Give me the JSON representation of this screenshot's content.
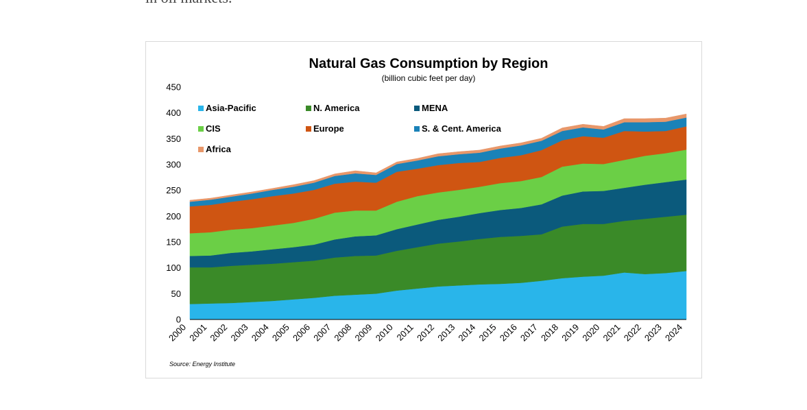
{
  "article": {
    "trailing_text": "in oil markets."
  },
  "chart_data": {
    "type": "area",
    "stacked": true,
    "title": "Natural Gas Consumption by Region",
    "subtitle": "(billion cubic feet per day)",
    "xlabel": "",
    "ylabel": "",
    "ylim": [
      0,
      450
    ],
    "yticks": [
      0,
      50,
      100,
      150,
      200,
      250,
      300,
      350,
      400,
      450
    ],
    "grid": false,
    "legend_placement": "top-left",
    "source": "Source: Energy Institute",
    "categories": [
      "2000",
      "2001",
      "2002",
      "2003",
      "2004",
      "2005",
      "2006",
      "2007",
      "2008",
      "2009",
      "2010",
      "2011",
      "2012",
      "2013",
      "2014",
      "2015",
      "2016",
      "2017",
      "2018",
      "2019",
      "2020",
      "2021",
      "2022",
      "2023",
      "2024"
    ],
    "series": [
      {
        "name": "Asia-Pacific",
        "color": "#29b5ea",
        "values": [
          30,
          31,
          32,
          34,
          36,
          39,
          42,
          46,
          48,
          50,
          56,
          60,
          64,
          66,
          68,
          69,
          71,
          75,
          80,
          83,
          85,
          91,
          88,
          90,
          94
        ]
      },
      {
        "name": "N. America",
        "color": "#3a8a28",
        "values": [
          71,
          70,
          72,
          72,
          72,
          72,
          72,
          74,
          75,
          74,
          77,
          80,
          83,
          85,
          88,
          91,
          91,
          90,
          100,
          102,
          100,
          100,
          107,
          109,
          109
        ]
      },
      {
        "name": "MENA",
        "color": "#0b5a7c",
        "values": [
          22,
          23,
          25,
          26,
          28,
          29,
          31,
          35,
          38,
          39,
          42,
          44,
          46,
          48,
          50,
          52,
          54,
          58,
          60,
          63,
          64,
          64,
          66,
          67,
          68
        ]
      },
      {
        "name": "CIS",
        "color": "#6bcf46",
        "values": [
          44,
          45,
          45,
          45,
          46,
          47,
          50,
          52,
          50,
          48,
          53,
          55,
          53,
          52,
          51,
          52,
          52,
          53,
          56,
          54,
          52,
          54,
          56,
          56,
          58
        ]
      },
      {
        "name": "Europe",
        "color": "#cf5512",
        "values": [
          52,
          53,
          54,
          56,
          57,
          57,
          56,
          56,
          56,
          54,
          58,
          53,
          53,
          52,
          48,
          49,
          50,
          52,
          51,
          53,
          51,
          56,
          47,
          43,
          45
        ]
      },
      {
        "name": "S. & Cent. America",
        "color": "#1a82b8",
        "values": [
          9,
          10,
          10,
          11,
          12,
          13,
          14,
          15,
          16,
          15,
          15,
          16,
          17,
          17,
          18,
          18,
          19,
          18,
          18,
          17,
          16,
          17,
          18,
          18,
          17
        ]
      },
      {
        "name": "Africa",
        "color": "#e8976a",
        "values": [
          3,
          3,
          3,
          3,
          3,
          4,
          4,
          4,
          5,
          4,
          4,
          4,
          5,
          5,
          5,
          5,
          5,
          5,
          6,
          6,
          6,
          7,
          7,
          7,
          7
        ]
      }
    ]
  }
}
